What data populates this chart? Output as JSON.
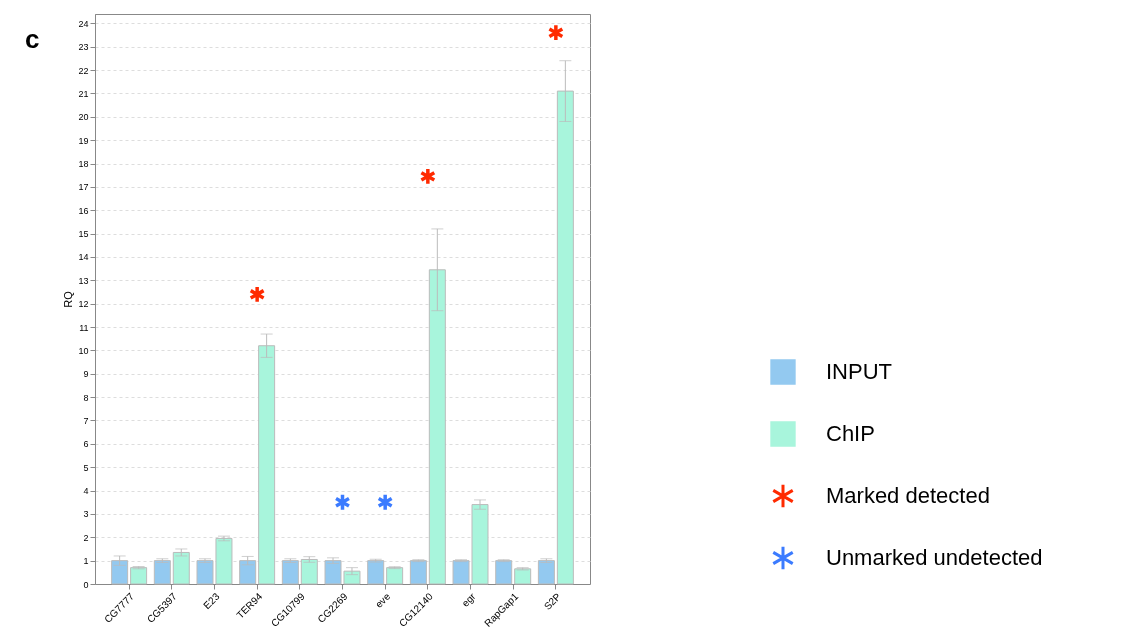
{
  "chart_data": {
    "type": "bar",
    "title": "c",
    "ylabel": "RQ",
    "categories": [
      "CG7777",
      "CG5397",
      "E23",
      "TER94",
      "CG10799",
      "CG2269",
      "eve",
      "CG12140",
      "egr",
      "RapGap1",
      "S2P"
    ],
    "series": [
      {
        "name": "INPUT",
        "color": "#93c9f0",
        "values": [
          1.0,
          1.0,
          1.0,
          1.0,
          1.0,
          1.0,
          1.0,
          1.0,
          1.0,
          1.0,
          1.0
        ],
        "errors": [
          0.2,
          0.08,
          0.08,
          0.18,
          0.08,
          0.12,
          0.06,
          0.04,
          0.04,
          0.04,
          0.08
        ]
      },
      {
        "name": "ChIP",
        "color": "#a8f5dc",
        "values": [
          0.7,
          1.35,
          1.95,
          10.2,
          1.05,
          0.55,
          0.7,
          13.45,
          3.4,
          0.65,
          21.1
        ],
        "errors": [
          0.05,
          0.15,
          0.1,
          0.5,
          0.12,
          0.15,
          0.04,
          1.75,
          0.2,
          0.05,
          1.3
        ]
      },
      {
        "name": "Marked detected",
        "type": "scatter",
        "color": "#ff2a00",
        "values": [
          null,
          null,
          null,
          12.4,
          null,
          null,
          null,
          17.45,
          null,
          null,
          23.6
        ]
      },
      {
        "name": "Unmarked undetected",
        "type": "scatter",
        "color": "#3b7bff",
        "values": [
          null,
          null,
          null,
          null,
          null,
          3.5,
          3.5,
          null,
          null,
          null,
          null
        ]
      }
    ],
    "ylim": [
      0,
      24.4
    ],
    "yticks": [
      0,
      1,
      2,
      3,
      4,
      5,
      6,
      7,
      8,
      9,
      10,
      11,
      12,
      13,
      14,
      15,
      16,
      17,
      18,
      19,
      20,
      21,
      22,
      23,
      24
    ],
    "grid": "y",
    "legend": "right"
  }
}
